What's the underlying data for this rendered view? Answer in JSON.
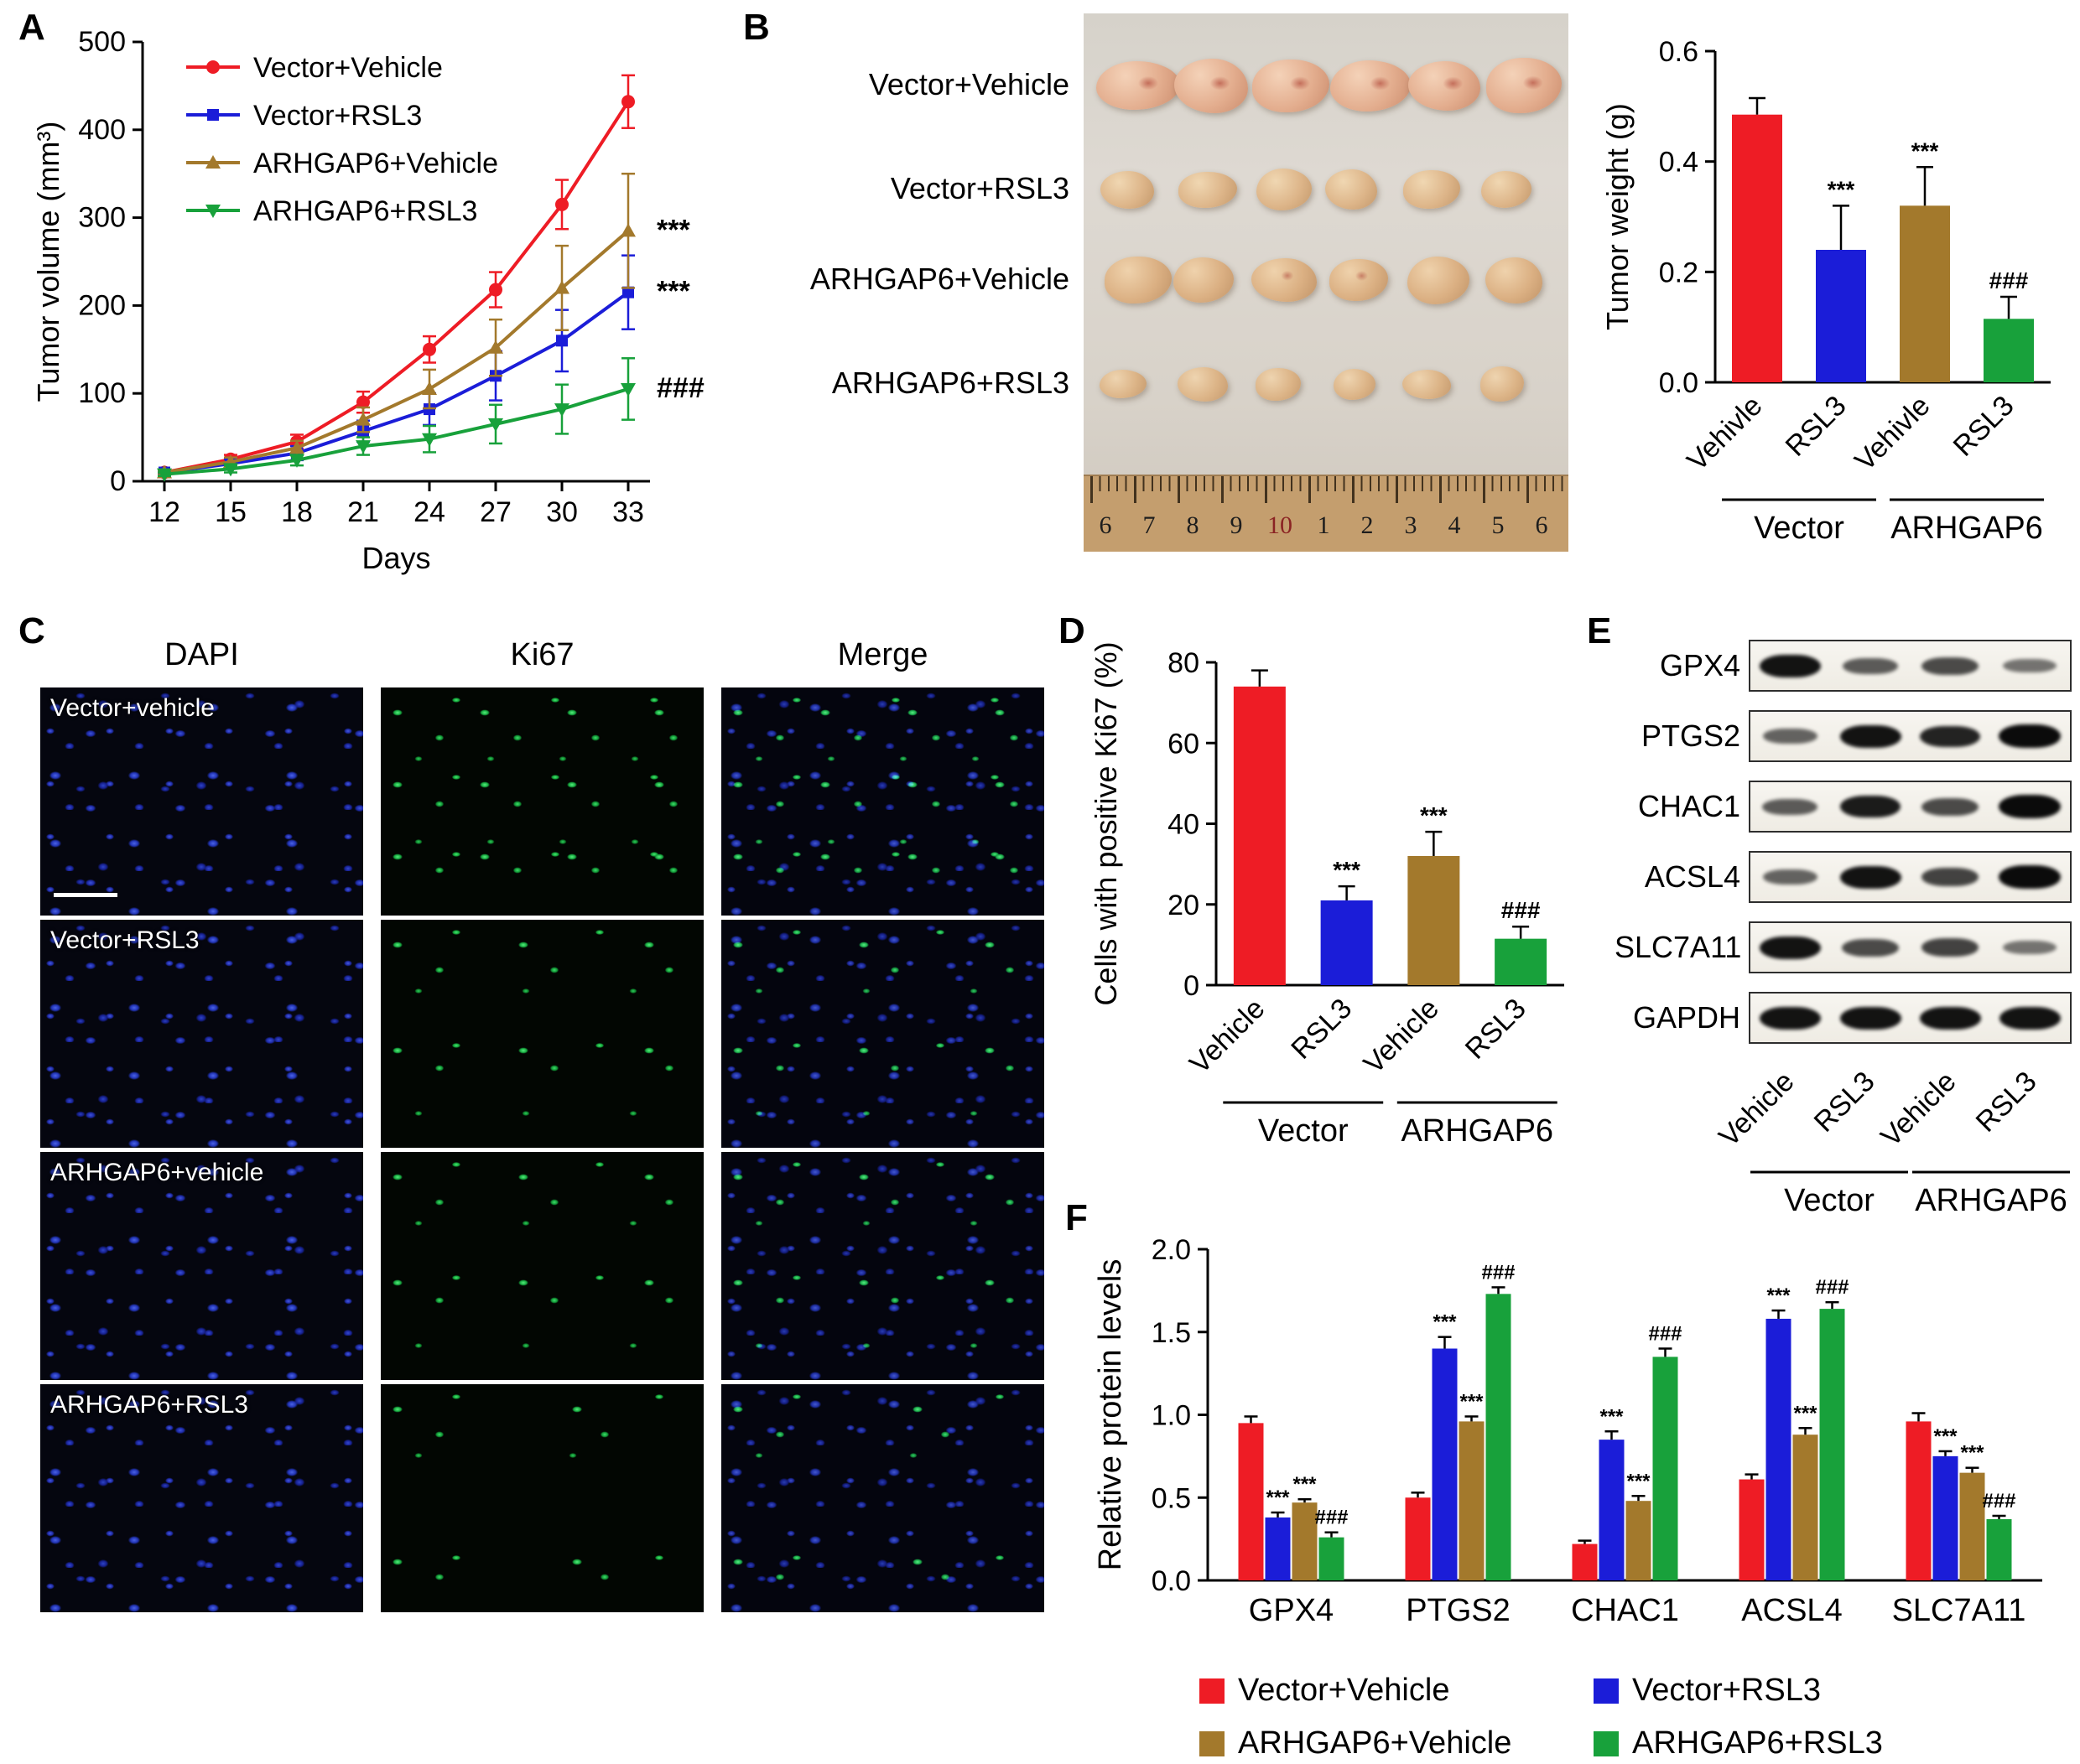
{
  "colors": {
    "red": "#ee1c25",
    "blue": "#1b1dd8",
    "brown": "#a3792c",
    "green": "#18a13b"
  },
  "panels": {
    "A": {
      "label": "A"
    },
    "B": {
      "label": "B",
      "rows": [
        "Vector+Vehicle",
        "Vector+RSL3",
        "ARHGAP6+Vehicle",
        "ARHGAP6+RSL3"
      ],
      "ruler_numbers": [
        "6",
        "7",
        "8",
        "9",
        "10",
        "1",
        "2",
        "3",
        "4",
        "5",
        "6"
      ]
    },
    "C": {
      "label": "C",
      "columns": [
        "DAPI",
        "Ki67",
        "Merge"
      ],
      "rows": [
        "Vector+vehicle",
        "Vector+RSL3",
        "ARHGAP6+vehicle",
        "ARHGAP6+RSL3"
      ]
    },
    "D": {
      "label": "D"
    },
    "E": {
      "label": "E",
      "proteins": [
        "GPX4",
        "PTGS2",
        "CHAC1",
        "ACSL4",
        "SLC7A11",
        "GAPDH"
      ],
      "lanes": [
        "Vehicle",
        "RSL3",
        "Vehicle",
        "RSL3"
      ],
      "groups": [
        "Vector",
        "ARHGAP6"
      ],
      "band_intensity": [
        [
          0.95,
          0.5,
          0.6,
          0.35
        ],
        [
          0.45,
          0.95,
          0.85,
          1.0
        ],
        [
          0.5,
          0.9,
          0.6,
          1.0
        ],
        [
          0.45,
          0.95,
          0.65,
          1.0
        ],
        [
          0.95,
          0.6,
          0.65,
          0.35
        ],
        [
          0.95,
          0.95,
          0.95,
          0.95
        ]
      ]
    },
    "F": {
      "label": "F"
    }
  },
  "chart_data": [
    {
      "id": "tumor_volume",
      "panel": "A",
      "type": "line",
      "xlabel": "Days",
      "ylabel": "Tumor volume (mm³)",
      "x": [
        12,
        15,
        18,
        21,
        24,
        27,
        30,
        33
      ],
      "ylim": [
        0,
        500
      ],
      "yticks": [
        0,
        100,
        200,
        300,
        400,
        500
      ],
      "legend_position": "top-left",
      "series": [
        {
          "name": "Vector+Vehicle",
          "color": "red",
          "marker": "circle",
          "values": [
            10,
            25,
            45,
            90,
            150,
            218,
            315,
            432
          ],
          "err": [
            3,
            5,
            8,
            12,
            15,
            20,
            28,
            30
          ],
          "annotation": ""
        },
        {
          "name": "Vector+RSL3",
          "color": "blue",
          "marker": "square",
          "values": [
            10,
            20,
            32,
            57,
            82,
            120,
            160,
            215
          ],
          "err": [
            3,
            5,
            8,
            12,
            18,
            28,
            35,
            42
          ],
          "annotation": "***"
        },
        {
          "name": "ARHGAP6+Vehicle",
          "color": "brown",
          "marker": "triangle-up",
          "values": [
            10,
            22,
            38,
            70,
            105,
            152,
            220,
            285
          ],
          "err": [
            3,
            5,
            8,
            14,
            22,
            32,
            48,
            65
          ],
          "annotation": "***"
        },
        {
          "name": "ARHGAP6+RSL3",
          "color": "green",
          "marker": "triangle-down",
          "values": [
            8,
            14,
            24,
            40,
            48,
            65,
            82,
            105
          ],
          "err": [
            2,
            4,
            6,
            10,
            15,
            22,
            28,
            35
          ],
          "annotation": "###"
        }
      ]
    },
    {
      "id": "tumor_weight",
      "panel": "B",
      "type": "bar",
      "ylabel": "Tumor weight (g)",
      "ylim": [
        0,
        0.6
      ],
      "yticks": [
        "0.0",
        "0.2",
        "0.4",
        "0.6"
      ],
      "categories": [
        "Vehivle",
        "RSL3",
        "Vehivle",
        "RSL3"
      ],
      "values": [
        0.485,
        0.24,
        0.32,
        0.115
      ],
      "errors": [
        0.03,
        0.08,
        0.07,
        0.04
      ],
      "colors": [
        "red",
        "blue",
        "brown",
        "green"
      ],
      "annotations": [
        "",
        "***",
        "***",
        "###"
      ],
      "groups": [
        "Vector",
        "ARHGAP6"
      ]
    },
    {
      "id": "ki67_positive",
      "panel": "D",
      "type": "bar",
      "ylabel": "Cells with positive Ki67 (%)",
      "ylim": [
        0,
        80
      ],
      "yticks": [
        "0",
        "20",
        "40",
        "60",
        "80"
      ],
      "categories": [
        "Vehicle",
        "RSL3",
        "Vehicle",
        "RSL3"
      ],
      "values": [
        74,
        21,
        32,
        11.5
      ],
      "errors": [
        4,
        3.5,
        6,
        3
      ],
      "colors": [
        "red",
        "blue",
        "brown",
        "green"
      ],
      "annotations": [
        "",
        "***",
        "***",
        "###"
      ],
      "groups": [
        "Vector",
        "ARHGAP6"
      ]
    },
    {
      "id": "protein_levels",
      "panel": "F",
      "type": "bar",
      "grouped": true,
      "ylabel": "Relative protein levels",
      "ylim": [
        0,
        2
      ],
      "yticks": [
        "0.0",
        "0.5",
        "1.0",
        "1.5",
        "2.0"
      ],
      "categories": [
        "GPX4",
        "PTGS2",
        "CHAC1",
        "ACSL4",
        "SLC7A11"
      ],
      "legend_position": "bottom",
      "series": [
        {
          "name": "Vector+Vehicle",
          "color": "red",
          "values": [
            0.95,
            0.5,
            0.22,
            0.61,
            0.96
          ],
          "errors": [
            0.04,
            0.03,
            0.02,
            0.03,
            0.05
          ],
          "annotations": [
            "",
            "",
            "",
            "",
            ""
          ]
        },
        {
          "name": "Vector+RSL3",
          "color": "blue",
          "values": [
            0.38,
            1.4,
            0.85,
            1.58,
            0.75
          ],
          "errors": [
            0.03,
            0.07,
            0.05,
            0.05,
            0.03
          ],
          "annotations": [
            "***",
            "***",
            "***",
            "***",
            "***"
          ]
        },
        {
          "name": "ARHGAP6+Vehicle",
          "color": "brown",
          "values": [
            0.47,
            0.96,
            0.48,
            0.88,
            0.65
          ],
          "errors": [
            0.02,
            0.03,
            0.03,
            0.04,
            0.03
          ],
          "annotations": [
            "***",
            "***",
            "***",
            "***",
            "***"
          ]
        },
        {
          "name": "ARHGAP6+RSL3",
          "color": "green",
          "values": [
            0.26,
            1.73,
            1.35,
            1.64,
            0.37
          ],
          "errors": [
            0.03,
            0.04,
            0.05,
            0.04,
            0.02
          ],
          "annotations": [
            "###",
            "###",
            "###",
            "###",
            "###"
          ]
        }
      ]
    }
  ]
}
